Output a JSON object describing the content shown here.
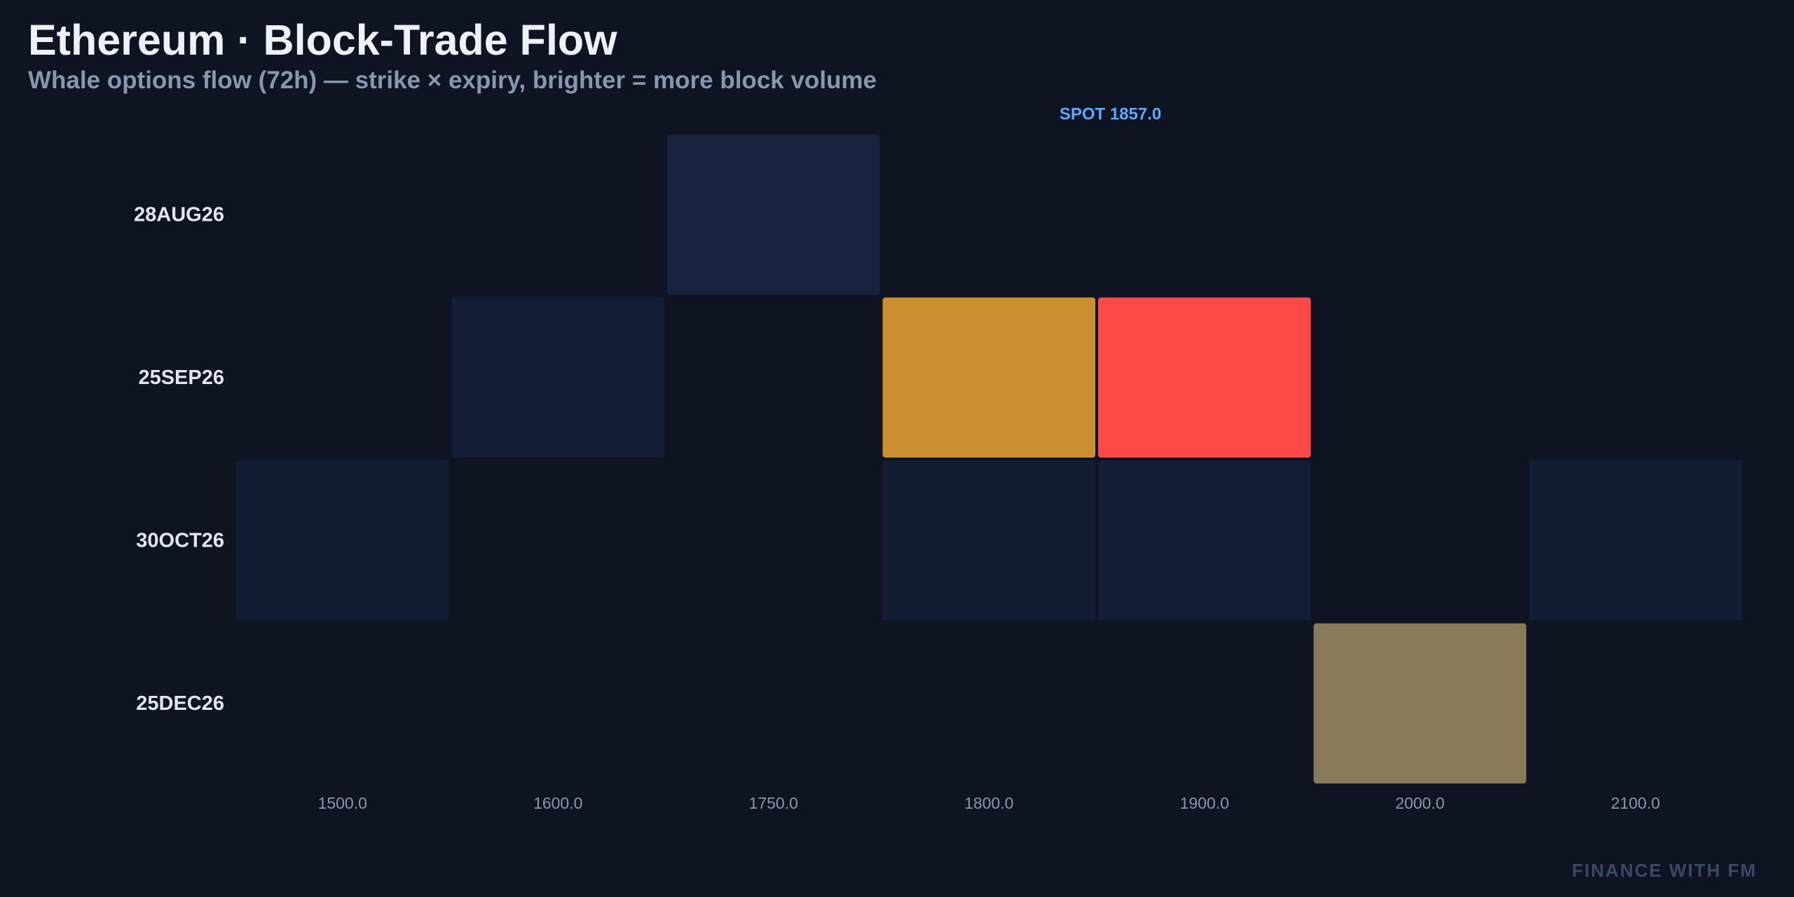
{
  "header": {
    "title": "Ethereum · Block-Trade Flow",
    "subtitle": "Whale options flow (72h) — strike × expiry, brighter = more block volume"
  },
  "chart_data": {
    "type": "heatmap",
    "title": "Ethereum · Block-Trade Flow",
    "subtitle": "Whale options flow (72h) — strike × expiry, brighter = more block volume",
    "x_categories": [
      "1500.0",
      "1600.0",
      "1750.0",
      "1800.0",
      "1900.0",
      "2000.0",
      "2100.0"
    ],
    "y_categories": [
      "28AUG26",
      "25SEP26",
      "30OCT26",
      "25DEC26"
    ],
    "cells": [
      {
        "expiry": "28AUG26",
        "strike": "1750.0",
        "color": "#18223e"
      },
      {
        "expiry": "25SEP26",
        "strike": "1600.0",
        "color": "#131d35"
      },
      {
        "expiry": "25SEP26",
        "strike": "1800.0",
        "color": "#cc8f30"
      },
      {
        "expiry": "25SEP26",
        "strike": "1900.0",
        "color": "#ff4848"
      },
      {
        "expiry": "30OCT26",
        "strike": "1500.0",
        "color": "#121c33"
      },
      {
        "expiry": "30OCT26",
        "strike": "1800.0",
        "color": "#121c33"
      },
      {
        "expiry": "30OCT26",
        "strike": "1900.0",
        "color": "#131d35"
      },
      {
        "expiry": "30OCT26",
        "strike": "2100.0",
        "color": "#121c33"
      },
      {
        "expiry": "25DEC26",
        "strike": "2000.0",
        "color": "#887a58"
      }
    ],
    "spot": {
      "label": "SPOT 1857.0",
      "value": 1857.0
    },
    "legend": "none",
    "grid": false
  },
  "colors": {
    "background": "#0e1422",
    "spot_line": "#4a9eff",
    "spot_label": "#5aa8ff",
    "axis_text": "#8a97ad",
    "row_label": "#e2e6ee"
  },
  "footer": {
    "watermark": "FINANCE WITH FM"
  }
}
